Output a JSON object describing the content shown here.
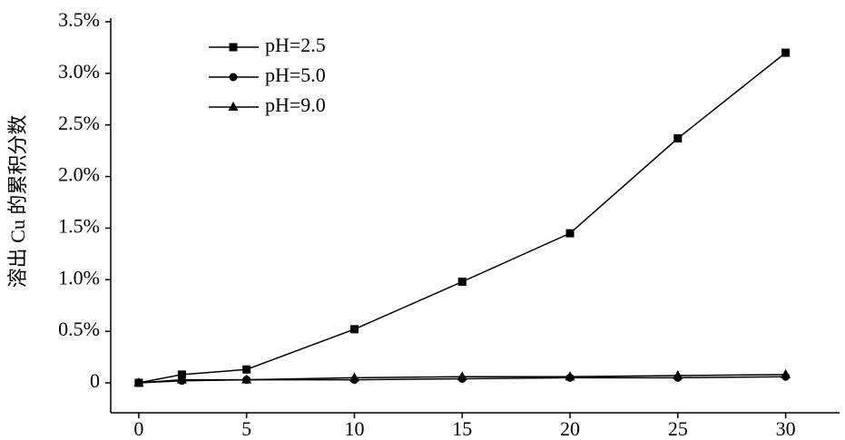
{
  "chart_data": {
    "type": "line",
    "y_label": "溶出 Cu 的累积分数",
    "x": [
      0,
      2,
      5,
      10,
      15,
      20,
      25,
      30
    ],
    "series": [
      {
        "name": "pH=2.5",
        "color": "#000000",
        "marker": "square",
        "values": [
          0,
          0.08,
          0.13,
          0.52,
          0.98,
          1.45,
          2.37,
          3.2
        ]
      },
      {
        "name": "pH=5.0",
        "color": "#000000",
        "marker": "circle",
        "values": [
          0,
          0.02,
          0.03,
          0.03,
          0.04,
          0.05,
          0.05,
          0.06
        ]
      },
      {
        "name": "pH=9.0",
        "color": "#000000",
        "marker": "triangle",
        "values": [
          0,
          0.03,
          0.03,
          0.05,
          0.06,
          0.06,
          0.07,
          0.08
        ]
      }
    ],
    "xlim": [
      -1.3,
      32.5
    ],
    "xticks": [
      0,
      5,
      10,
      15,
      20,
      25,
      30
    ],
    "ylim": [
      -0.29,
      3.5
    ],
    "yticks": [
      0,
      {
        "value": 0.5,
        "label": "0.5%"
      },
      {
        "value": 1,
        "label": "1.0%"
      },
      {
        "value": 1.5,
        "label": "1.5%"
      },
      {
        "value": 2,
        "label": "2.0%"
      },
      {
        "value": 2.5,
        "label": "2.5%"
      },
      {
        "value": 3,
        "label": "3.0%"
      },
      {
        "value": 3.5,
        "label": "3.5%"
      }
    ],
    "legend": "upper left"
  }
}
